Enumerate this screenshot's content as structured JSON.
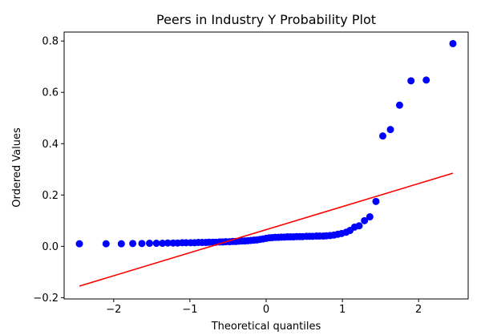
{
  "chart_data": {
    "type": "scatter",
    "title": "Peers in Industry Y Probability Plot",
    "xlabel": "Theoretical quantiles",
    "ylabel": "Ordered Values",
    "xlim": [
      -2.65,
      2.65
    ],
    "ylim": [
      -0.205,
      0.835
    ],
    "xticks": [
      -2,
      -1,
      0,
      1,
      2
    ],
    "xtick_labels": [
      "−2",
      "−1",
      "0",
      "1",
      "2"
    ],
    "yticks": [
      -0.2,
      0.0,
      0.2,
      0.4,
      0.6,
      0.8
    ],
    "ytick_labels": [
      "−0.2",
      "0.0",
      "0.2",
      "0.4",
      "0.6",
      "0.8"
    ],
    "grid": false,
    "series": [
      {
        "kind": "points",
        "color": "#0000ff",
        "x": [
          -2.45,
          -2.1,
          -1.9,
          -1.75,
          -1.63,
          -1.53,
          -1.44,
          -1.36,
          -1.29,
          -1.22,
          -1.16,
          -1.1,
          -1.05,
          -0.99,
          -0.94,
          -0.89,
          -0.84,
          -0.79,
          -0.75,
          -0.7,
          -0.66,
          -0.61,
          -0.57,
          -0.53,
          -0.48,
          -0.44,
          -0.4,
          -0.36,
          -0.32,
          -0.28,
          -0.24,
          -0.2,
          -0.16,
          -0.12,
          -0.08,
          -0.04,
          0.0,
          0.04,
          0.08,
          0.12,
          0.16,
          0.2,
          0.24,
          0.28,
          0.32,
          0.36,
          0.4,
          0.44,
          0.48,
          0.53,
          0.57,
          0.61,
          0.66,
          0.7,
          0.75,
          0.79,
          0.84,
          0.89,
          0.94,
          0.99,
          1.05,
          1.1,
          1.16,
          1.22,
          1.29,
          1.36,
          1.44,
          1.53,
          1.63,
          1.75,
          1.9,
          2.1,
          2.45
        ],
        "y": [
          0.01,
          0.01,
          0.01,
          0.011,
          0.011,
          0.012,
          0.012,
          0.012,
          0.013,
          0.013,
          0.013,
          0.014,
          0.014,
          0.014,
          0.014,
          0.015,
          0.015,
          0.015,
          0.016,
          0.016,
          0.016,
          0.017,
          0.017,
          0.018,
          0.018,
          0.019,
          0.019,
          0.02,
          0.021,
          0.021,
          0.022,
          0.023,
          0.024,
          0.025,
          0.027,
          0.029,
          0.031,
          0.033,
          0.034,
          0.035,
          0.035,
          0.036,
          0.036,
          0.037,
          0.037,
          0.037,
          0.038,
          0.038,
          0.038,
          0.039,
          0.039,
          0.039,
          0.04,
          0.04,
          0.04,
          0.041,
          0.042,
          0.044,
          0.047,
          0.05,
          0.055,
          0.062,
          0.075,
          0.08,
          0.1,
          0.115,
          0.175,
          0.43,
          0.455,
          0.55,
          0.645,
          0.648,
          0.79
        ]
      },
      {
        "kind": "fit-line",
        "color": "#ff0000",
        "x": [
          -2.45,
          2.45
        ],
        "y": [
          -0.155,
          0.285
        ]
      }
    ]
  }
}
